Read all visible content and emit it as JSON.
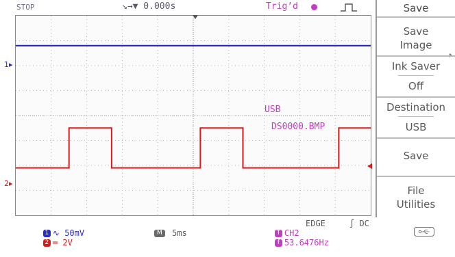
{
  "status": {
    "acquire_state": "STOP",
    "delay": "↘→▼ 0.000s",
    "trigger": "Trig’d"
  },
  "overlay": {
    "destination": "USB",
    "filename": "DS0000.BMP"
  },
  "markers": {
    "ch1": "1▸",
    "ch2": "2▸"
  },
  "bottom": {
    "ch1": {
      "badge": "1",
      "coupling": "∿",
      "scale": "50mV"
    },
    "ch2": {
      "badge": "2",
      "coupling": "═",
      "scale": "2V"
    },
    "timebase": {
      "badge": "M",
      "value": "5ms"
    },
    "trigger_source": {
      "badge": "T",
      "value": "CH2"
    },
    "trigger_type": "EDGE",
    "trigger_coupling": "∫ DC",
    "frequency": {
      "badge": "f",
      "value": "53.6476Hz"
    }
  },
  "menu": {
    "title": "Save",
    "save_image": "Save Image",
    "ink_saver": {
      "label": "Ink Saver",
      "value": "Off"
    },
    "destination": {
      "label": "Destination",
      "value": "USB"
    },
    "save": "Save",
    "file_utilities": "File Utilities"
  },
  "waveforms": {
    "ch1": {
      "color": "#2424d0",
      "shape": "flat",
      "level_div": 2.8
    },
    "ch2": {
      "color": "#e01818",
      "shape": "square",
      "low_div": -2.1,
      "high_div": -0.5,
      "edges_div": [
        1.5,
        2.7,
        5.2,
        6.4,
        9.1
      ],
      "start_low": true
    }
  },
  "colors": {
    "ch1": "#2b2bc8",
    "ch2": "#d41c1c",
    "trigger": "#c43bc4",
    "grid": "#8a8a8a"
  }
}
